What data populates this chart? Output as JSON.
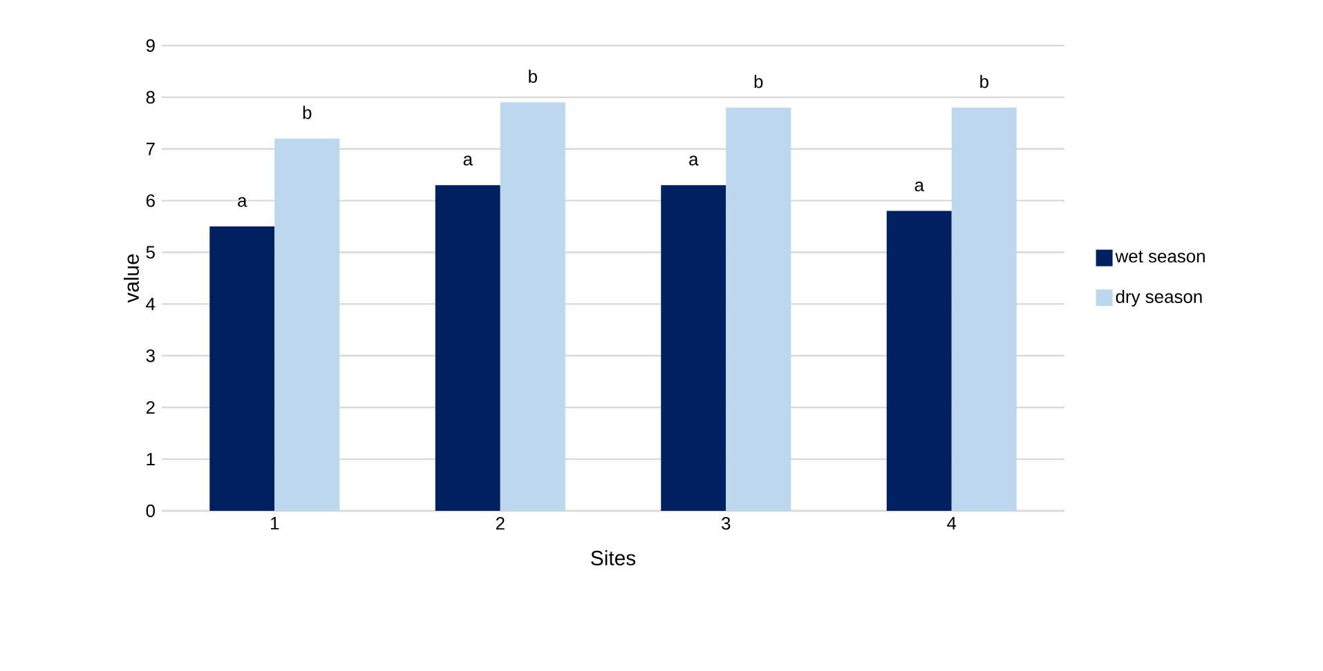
{
  "chart_data": {
    "type": "bar",
    "xlabel": "Sites",
    "ylabel": "value",
    "categories": [
      "1",
      "2",
      "3",
      "4"
    ],
    "series": [
      {
        "name": "wet season",
        "color": "#002060",
        "values": [
          5.5,
          6.3,
          6.3,
          5.8
        ]
      },
      {
        "name": "dry season",
        "color": "#bdd7ee",
        "values": [
          7.2,
          7.9,
          7.8,
          7.8
        ]
      }
    ],
    "ylim": [
      0,
      9
    ],
    "yticks": [
      0,
      1,
      2,
      3,
      4,
      5,
      6,
      7,
      8,
      9
    ],
    "grid": "y",
    "legend": "right",
    "annotations": [
      {
        "text": "a",
        "x": "1",
        "y": 5.5
      },
      {
        "text": "a",
        "x": "2",
        "y": 6.3
      },
      {
        "text": "a",
        "x": "3",
        "y": 6.3
      },
      {
        "text": "a",
        "x": "4",
        "y": 5.8
      },
      {
        "text": "b",
        "x": "1",
        "y": 7.2
      },
      {
        "text": "b",
        "x": "2",
        "y": 7.9
      },
      {
        "text": "b",
        "x": "3",
        "y": 7.8
      },
      {
        "text": "b",
        "x": "4",
        "y": 7.8
      }
    ]
  }
}
